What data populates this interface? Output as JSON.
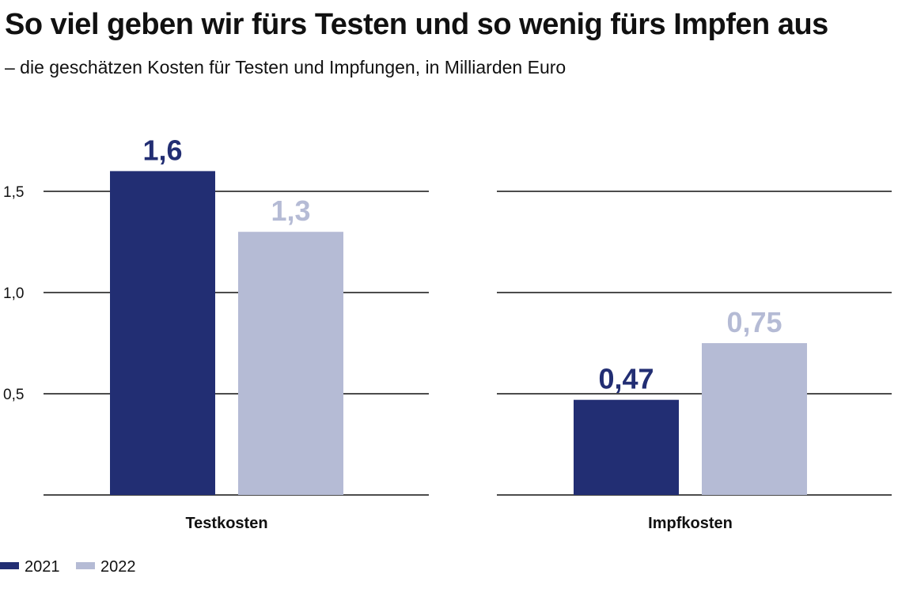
{
  "title": "So viel geben wir fürs Testen und so wenig fürs Impfen aus",
  "subtitle": "– die geschätzen Kosten für Testen und Impfungen, in Milliarden Euro",
  "colors": {
    "series_2021": "#222e73",
    "series_2022": "#b5bbd5",
    "grid": "#111111"
  },
  "chart_data": {
    "type": "bar",
    "title": "So viel geben wir fürs Testen und so wenig fürs Impfen aus",
    "subtitle": "– die geschätzen Kosten für Testen und Impfungen, in Milliarden Euro",
    "categories": [
      "Testkosten",
      "Impfkosten"
    ],
    "series": [
      {
        "name": "2021",
        "values": [
          1.6,
          0.47
        ],
        "labels": [
          "1,6",
          "0,47"
        ],
        "color": "#222e73"
      },
      {
        "name": "2022",
        "values": [
          1.3,
          0.75
        ],
        "labels": [
          "1,3",
          "0,75"
        ],
        "color": "#b5bbd5"
      }
    ],
    "yticks": [
      0.5,
      1.0,
      1.5
    ],
    "ytick_labels": [
      "0,5",
      "1,0",
      "1,5"
    ],
    "ylim": [
      0,
      1.5
    ],
    "grid": true,
    "legend": "bottom-left",
    "xlabel": "",
    "ylabel": ""
  }
}
